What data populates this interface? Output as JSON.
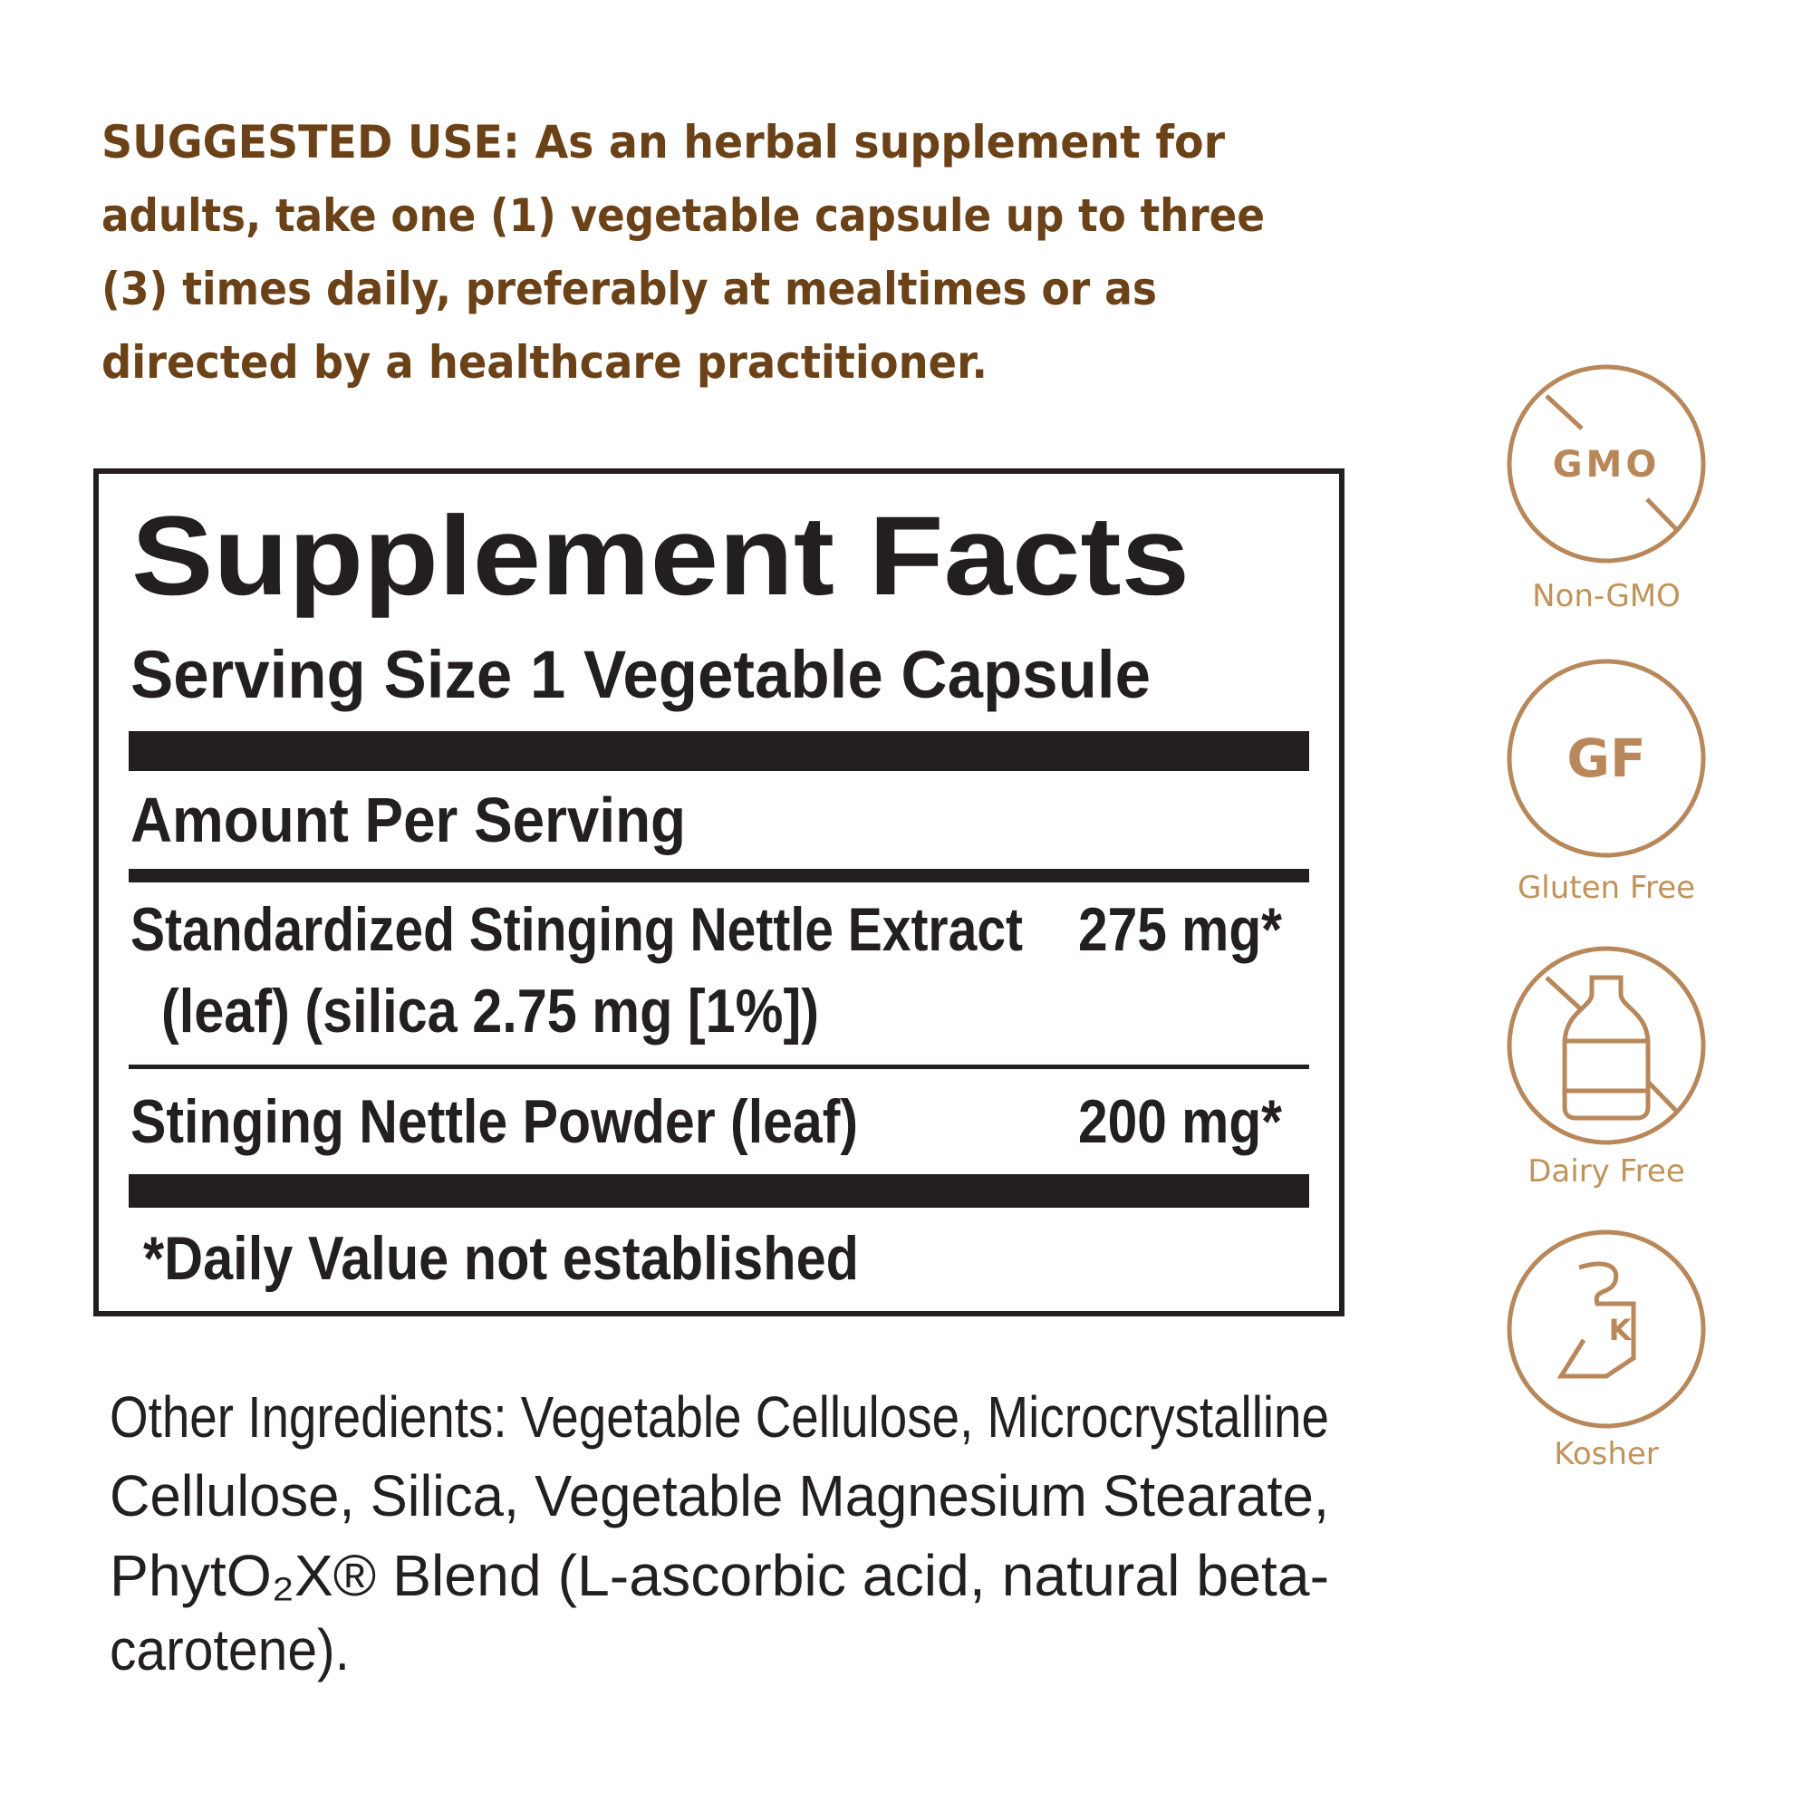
{
  "suggested_use": {
    "lines": [
      "SUGGESTED USE: As an herbal supplement for",
      "adults, take one (1) vegetable capsule up to three",
      "(3) times daily, preferably at mealtimes or as",
      "directed by a healthcare practitioner."
    ]
  },
  "supplement_facts": {
    "title": "Supplement Facts",
    "serving_size": "Serving Size 1 Vegetable Capsule",
    "amount_per_serving": "Amount Per Serving",
    "rows": [
      {
        "name": [
          "Standardized Stinging Nettle Extract",
          "(leaf) (silica 2.75 mg [1%])"
        ],
        "amount": "275 mg*"
      },
      {
        "name": [
          "Stinging Nettle Powder (leaf)"
        ],
        "amount": "200 mg*"
      }
    ],
    "footnote": "*Daily Value not established"
  },
  "other_ingredients": {
    "lines": [
      "Other Ingredients: Vegetable Cellulose, Microcrystalline",
      "Cellulose, Silica, Vegetable Magnesium Stearate,",
      "PhytO₂X® Blend (L-ascorbic acid, natural beta-",
      "carotene)."
    ]
  },
  "badges": [
    {
      "icon": "GMO",
      "label": "Non-GMO"
    },
    {
      "icon": "GF",
      "label": "Gluten Free"
    },
    {
      "label": "Dairy Free"
    },
    {
      "label": "Kosher"
    }
  ]
}
